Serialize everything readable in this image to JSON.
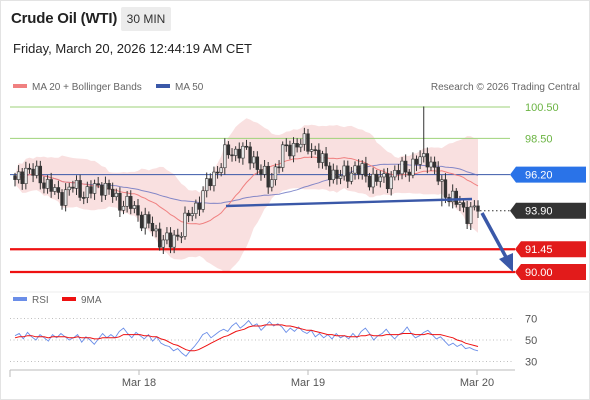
{
  "header": {
    "title": "Crude Oil (WTI)",
    "interval": "30 MIN",
    "datetime": "Friday, March 20, 2026 12:44:19 AM CET"
  },
  "legend": {
    "ma20_label": "MA 20 + Bollinger Bands",
    "ma50_label": "MA 50",
    "credit": "Research © 2026 Trading Central",
    "rsi_label": "RSI",
    "ma9_label": "9MA"
  },
  "colors": {
    "bull": "#e7e7e7",
    "bear": "#333333",
    "bollinger_fill": "#f8dada",
    "ma20": "#f08080",
    "ma50": "#6670c0",
    "trend": "#3a58a8",
    "support": "#ee1111",
    "resistance": "#9ed27a",
    "current": "#333333",
    "rsi": "#6b8ee8",
    "rsi_ma": "#ee1111"
  },
  "chart_data": [
    {
      "type": "candlestick",
      "x_ticks": [
        "Mar 18",
        "Mar 19",
        "Mar 20"
      ],
      "ylim": [
        89.5,
        101.5
      ],
      "price_levels": [
        {
          "value": "100.50",
          "kind": "resistance"
        },
        {
          "value": "98.50",
          "kind": "resistance"
        },
        {
          "value": "96.20",
          "kind": "pivot"
        },
        {
          "value": "93.90",
          "kind": "current"
        },
        {
          "value": "91.45",
          "kind": "support"
        },
        {
          "value": "90.00",
          "kind": "support"
        }
      ],
      "series": [
        {
          "name": "MA 20 + Bollinger Bands"
        },
        {
          "name": "MA 50"
        }
      ]
    },
    {
      "type": "line",
      "ylim": [
        25,
        75
      ],
      "y_ticks": [
        "70",
        "50",
        "30"
      ],
      "series": [
        {
          "name": "RSI",
          "values": [
            54,
            56,
            51,
            57,
            53,
            50,
            55,
            52,
            49,
            55,
            52,
            56,
            53,
            50,
            52,
            55,
            48,
            53,
            50,
            46,
            51,
            56,
            52,
            55,
            52,
            58,
            61,
            56,
            52,
            57,
            54,
            51,
            55,
            49,
            53,
            47,
            45,
            44,
            40,
            42,
            38,
            35,
            40,
            44,
            49,
            55,
            57,
            52,
            55,
            58,
            60,
            58,
            63,
            66,
            61,
            64,
            68,
            63,
            65,
            59,
            63,
            67,
            63,
            65,
            62,
            57,
            61,
            58,
            62,
            58,
            56,
            59,
            53,
            56,
            52,
            55,
            51,
            56,
            52,
            54,
            51,
            56,
            52,
            58,
            61,
            56,
            50,
            54,
            56,
            60,
            55,
            51,
            55,
            57,
            62,
            56,
            52,
            54,
            57,
            59,
            55,
            51,
            53,
            49,
            45,
            47,
            44,
            46,
            42,
            43,
            41,
            40
          ]
        },
        {
          "name": "9MA",
          "values": [
            52,
            53,
            53,
            54,
            54,
            53,
            53,
            53,
            52,
            53,
            53,
            53,
            53,
            52,
            52,
            53,
            52,
            52,
            52,
            51,
            51,
            52,
            52,
            52,
            52,
            53,
            55,
            55,
            55,
            55,
            55,
            54,
            54,
            53,
            53,
            51,
            50,
            48,
            46,
            45,
            43,
            41,
            40,
            40,
            41,
            43,
            45,
            47,
            49,
            51,
            53,
            54,
            56,
            58,
            59,
            60,
            62,
            63,
            63,
            63,
            64,
            64,
            64,
            64,
            64,
            63,
            63,
            62,
            61,
            60,
            59,
            59,
            58,
            57,
            56,
            55,
            55,
            54,
            54,
            54,
            53,
            53,
            53,
            54,
            54,
            55,
            54,
            54,
            54,
            55,
            55,
            55,
            55,
            56,
            56,
            56,
            55,
            55,
            55,
            56,
            55,
            55,
            55,
            54,
            53,
            52,
            50,
            49,
            47,
            46,
            45,
            44
          ]
        }
      ]
    }
  ]
}
